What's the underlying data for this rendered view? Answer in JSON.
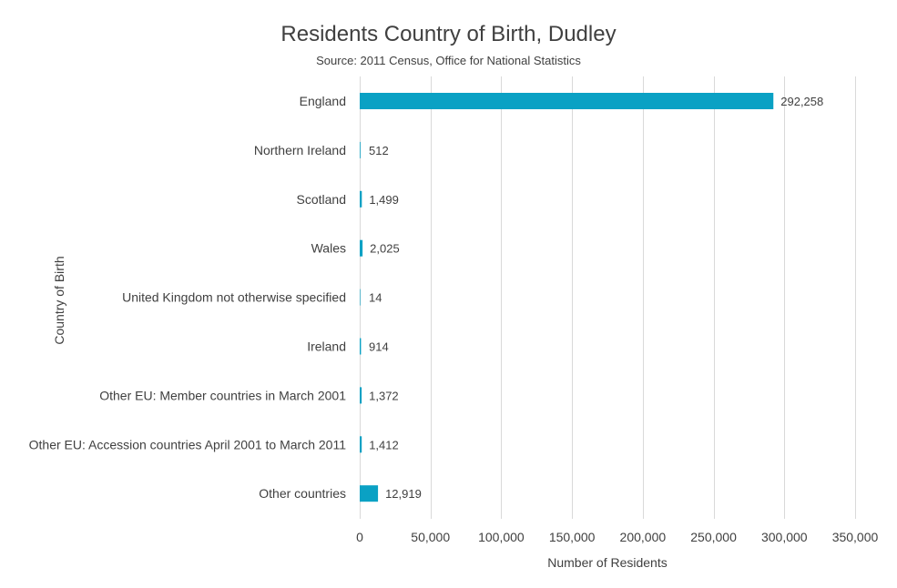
{
  "chart_data": {
    "type": "bar",
    "orientation": "horizontal",
    "title": "Residents Country of Birth, Dudley",
    "subtitle": "Source: 2011 Census, Office for National Statistics",
    "xlabel": "Number of Residents",
    "ylabel": "Country of Birth",
    "categories": [
      "England",
      "Northern Ireland",
      "Scotland",
      "Wales",
      "United Kingdom not otherwise specified",
      "Ireland",
      "Other EU: Member countries in March 2001",
      "Other EU: Accession countries April 2001 to March 2011",
      "Other countries"
    ],
    "values": [
      292258,
      512,
      1499,
      2025,
      14,
      914,
      1372,
      1412,
      12919
    ],
    "data_labels": [
      "292,258",
      "512",
      "1,499",
      "2,025",
      "14",
      "914",
      "1,372",
      "1,412",
      "12,919"
    ],
    "xlim": [
      0,
      350000
    ],
    "xticks": [
      0,
      50000,
      100000,
      150000,
      200000,
      250000,
      300000,
      350000
    ],
    "xtick_labels": [
      "0",
      "50,000",
      "100,000",
      "150,000",
      "200,000",
      "250,000",
      "300,000",
      "350,000"
    ],
    "grid": "vertical",
    "bar_color": "#0aa1c4",
    "grid_color": "#d9d9d9"
  }
}
